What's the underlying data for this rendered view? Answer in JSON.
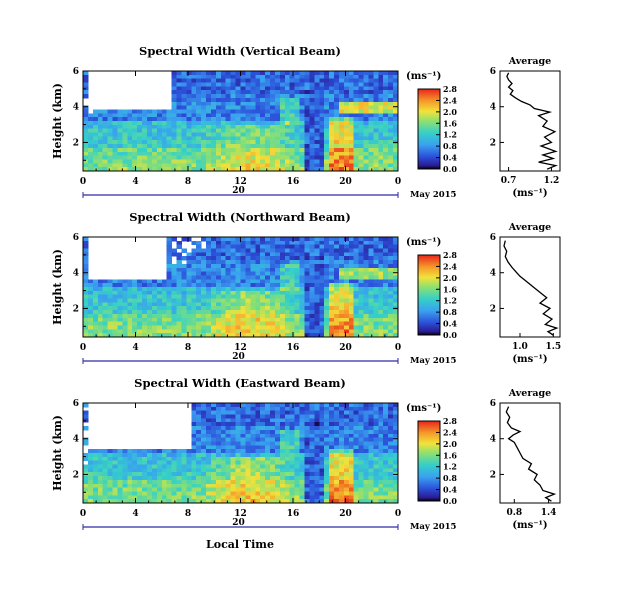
{
  "figure": {
    "x_axis_label": "Local Time",
    "date_label": "May 2015",
    "units": "(ms⁻¹)",
    "average_title": "Average"
  },
  "chart_data": [
    {
      "type": "heatmap",
      "title": "Spectral Width (Vertical Beam)",
      "ylabel": "Height (km)",
      "xlabel": "Local Time",
      "x_ticks": [
        "0",
        "4",
        "8",
        "12",
        "16",
        "20",
        "0"
      ],
      "xlim": [
        0,
        24
      ],
      "y_ticks": [
        "2",
        "4",
        "6"
      ],
      "ylim": [
        0.4,
        6
      ],
      "date_axis": {
        "tick": "20",
        "label": "May 2015"
      },
      "colorbar": {
        "ticks": [
          "0.0",
          "0.4",
          "0.8",
          "1.2",
          "1.6",
          "2.0",
          "2.4",
          "2.8"
        ]
      },
      "average": {
        "title": "Average",
        "x_ticks": [
          "0.7",
          "1.2"
        ],
        "xlim": [
          0.6,
          1.3
        ],
        "y_ticks": [
          "2",
          "4",
          "6"
        ],
        "xlabel": "(ms⁻¹)",
        "profile": [
          {
            "h": 0.5,
            "v": 1.15
          },
          {
            "h": 0.7,
            "v": 1.25
          },
          {
            "h": 0.9,
            "v": 1.05
          },
          {
            "h": 1.1,
            "v": 1.22
          },
          {
            "h": 1.3,
            "v": 1.1
          },
          {
            "h": 1.5,
            "v": 1.25
          },
          {
            "h": 1.8,
            "v": 1.08
          },
          {
            "h": 2.0,
            "v": 1.2
          },
          {
            "h": 2.3,
            "v": 1.12
          },
          {
            "h": 2.6,
            "v": 1.24
          },
          {
            "h": 2.9,
            "v": 1.1
          },
          {
            "h": 3.2,
            "v": 1.15
          },
          {
            "h": 3.5,
            "v": 1.05
          },
          {
            "h": 3.7,
            "v": 1.18
          },
          {
            "h": 3.9,
            "v": 1.0
          },
          {
            "h": 4.1,
            "v": 0.95
          },
          {
            "h": 4.3,
            "v": 0.85
          },
          {
            "h": 4.5,
            "v": 0.78
          },
          {
            "h": 4.7,
            "v": 0.72
          },
          {
            "h": 4.9,
            "v": 0.75
          },
          {
            "h": 5.1,
            "v": 0.7
          },
          {
            "h": 5.3,
            "v": 0.74
          },
          {
            "h": 5.5,
            "v": 0.7
          },
          {
            "h": 5.7,
            "v": 0.68
          },
          {
            "h": 5.9,
            "v": 0.7
          }
        ]
      }
    },
    {
      "type": "heatmap",
      "title": "Spectral Width (Northward Beam)",
      "ylabel": "Height (km)",
      "xlabel": "Local Time",
      "x_ticks": [
        "0",
        "4",
        "8",
        "12",
        "16",
        "20",
        "0"
      ],
      "xlim": [
        0,
        24
      ],
      "y_ticks": [
        "2",
        "4",
        "6"
      ],
      "ylim": [
        0.4,
        6
      ],
      "date_axis": {
        "tick": "20",
        "label": "May 2015"
      },
      "colorbar": {
        "ticks": [
          "0.0",
          "0.4",
          "0.8",
          "1.2",
          "1.6",
          "2.0",
          "2.4",
          "2.8"
        ]
      },
      "average": {
        "title": "Average",
        "x_ticks": [
          "1.0",
          "1.5"
        ],
        "xlim": [
          0.7,
          1.6
        ],
        "y_ticks": [
          "2",
          "4",
          "6"
        ],
        "xlabel": "(ms⁻¹)",
        "profile": [
          {
            "h": 0.5,
            "v": 1.5
          },
          {
            "h": 0.7,
            "v": 1.42
          },
          {
            "h": 0.9,
            "v": 1.55
          },
          {
            "h": 1.1,
            "v": 1.38
          },
          {
            "h": 1.4,
            "v": 1.48
          },
          {
            "h": 1.7,
            "v": 1.35
          },
          {
            "h": 2.0,
            "v": 1.45
          },
          {
            "h": 2.3,
            "v": 1.3
          },
          {
            "h": 2.6,
            "v": 1.4
          },
          {
            "h": 2.9,
            "v": 1.3
          },
          {
            "h": 3.2,
            "v": 1.2
          },
          {
            "h": 3.5,
            "v": 1.1
          },
          {
            "h": 3.8,
            "v": 1.0
          },
          {
            "h": 4.0,
            "v": 0.95
          },
          {
            "h": 4.3,
            "v": 0.88
          },
          {
            "h": 4.6,
            "v": 0.82
          },
          {
            "h": 4.9,
            "v": 0.78
          },
          {
            "h": 5.2,
            "v": 0.8
          },
          {
            "h": 5.5,
            "v": 0.76
          },
          {
            "h": 5.8,
            "v": 0.78
          }
        ]
      }
    },
    {
      "type": "heatmap",
      "title": "Spectral Width (Eastward Beam)",
      "ylabel": "Height (km)",
      "xlabel": "Local Time",
      "x_ticks": [
        "0",
        "4",
        "8",
        "12",
        "16",
        "20",
        "0"
      ],
      "xlim": [
        0,
        24
      ],
      "y_ticks": [
        "2",
        "4",
        "6"
      ],
      "ylim": [
        0.4,
        6
      ],
      "date_axis": {
        "tick": "20",
        "label": "May 2015"
      },
      "colorbar": {
        "ticks": [
          "0.0",
          "0.4",
          "0.8",
          "1.2",
          "1.6",
          "2.0",
          "2.4",
          "2.8"
        ]
      },
      "average": {
        "title": "Average",
        "x_ticks": [
          "0.8",
          "1.4"
        ],
        "xlim": [
          0.55,
          1.6
        ],
        "y_ticks": [
          "2",
          "4",
          "6"
        ],
        "xlabel": "(ms⁻¹)",
        "profile": [
          {
            "h": 0.5,
            "v": 1.45
          },
          {
            "h": 0.7,
            "v": 1.35
          },
          {
            "h": 0.9,
            "v": 1.5
          },
          {
            "h": 1.1,
            "v": 1.3
          },
          {
            "h": 1.4,
            "v": 1.25
          },
          {
            "h": 1.7,
            "v": 1.15
          },
          {
            "h": 2.0,
            "v": 1.2
          },
          {
            "h": 2.3,
            "v": 1.05
          },
          {
            "h": 2.6,
            "v": 1.1
          },
          {
            "h": 2.9,
            "v": 0.95
          },
          {
            "h": 3.2,
            "v": 0.9
          },
          {
            "h": 3.5,
            "v": 0.85
          },
          {
            "h": 3.8,
            "v": 0.8
          },
          {
            "h": 4.0,
            "v": 0.7
          },
          {
            "h": 4.2,
            "v": 0.78
          },
          {
            "h": 4.4,
            "v": 0.9
          },
          {
            "h": 4.6,
            "v": 0.75
          },
          {
            "h": 4.9,
            "v": 0.68
          },
          {
            "h": 5.2,
            "v": 0.72
          },
          {
            "h": 5.5,
            "v": 0.66
          },
          {
            "h": 5.8,
            "v": 0.7
          }
        ]
      }
    }
  ]
}
